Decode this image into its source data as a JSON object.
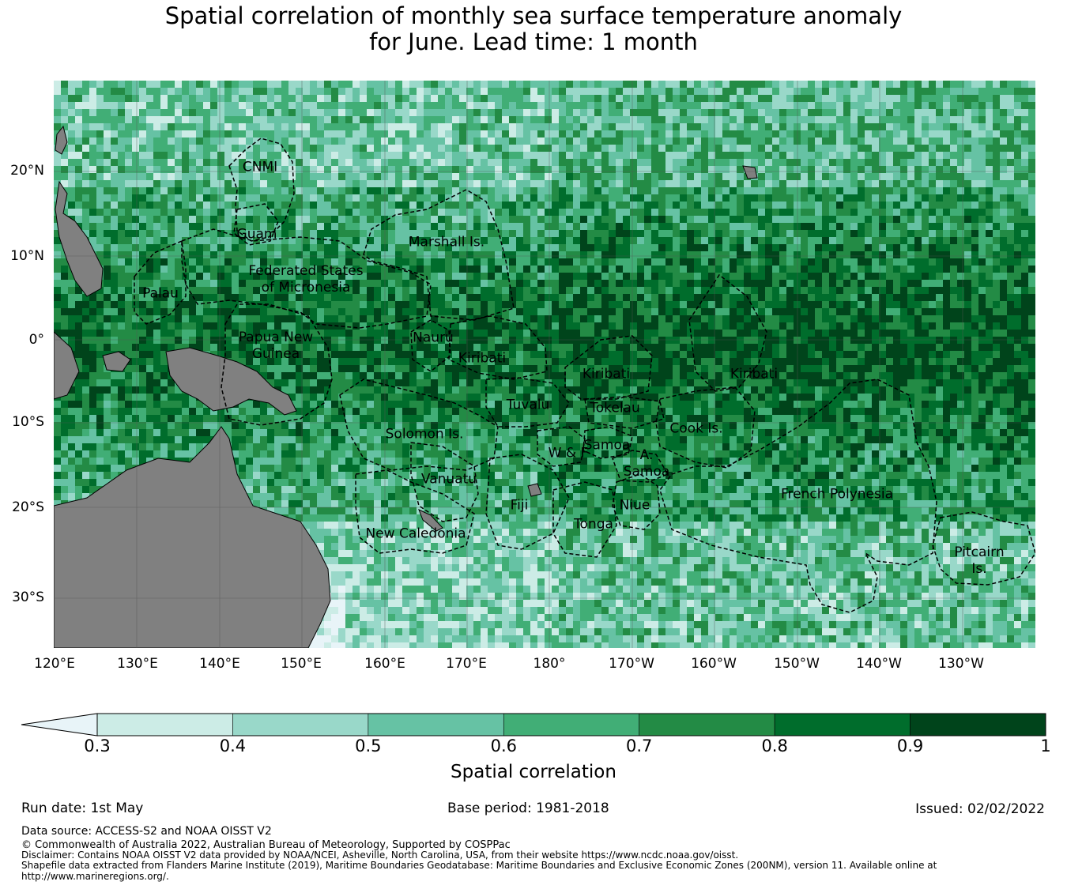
{
  "title": {
    "line1": "Spatial correlation of monthly sea surface temperature anomaly",
    "line2": "for June. Lead time: 1 month"
  },
  "map": {
    "lat_labels": [
      "20°N",
      "10°N",
      "0°",
      "10°S",
      "20°S",
      "30°S"
    ],
    "lon_labels": [
      "120°E",
      "130°E",
      "140°E",
      "150°E",
      "160°E",
      "170°E",
      "180°",
      "170°W",
      "160°W",
      "150°W",
      "140°W",
      "130°W"
    ],
    "regions": [
      {
        "name": "CNMI"
      },
      {
        "name": "Guam"
      },
      {
        "name": "Marshall Is."
      },
      {
        "name": "Federated States\nof Micronesia"
      },
      {
        "name": "Palau"
      },
      {
        "name": "Papua New\nGuinea"
      },
      {
        "name": "Nauru"
      },
      {
        "name": "Kiribati"
      },
      {
        "name": "Kiribati"
      },
      {
        "name": "Kiribati"
      },
      {
        "name": "Tuvalu"
      },
      {
        "name": "Tokelau"
      },
      {
        "name": "Cook Is."
      },
      {
        "name": "Solomon Is."
      },
      {
        "name": "Samoa"
      },
      {
        "name": "W & F"
      },
      {
        "name": "A.\nSamoa"
      },
      {
        "name": "Vanuatu"
      },
      {
        "name": "Fiji"
      },
      {
        "name": "Niue"
      },
      {
        "name": "Tonga"
      },
      {
        "name": "French Polynesia"
      },
      {
        "name": "New Caledonia"
      },
      {
        "name": "Pitcairn\nIs."
      }
    ],
    "land_color": "#808080"
  },
  "colorbar": {
    "label": "Spatial correlation",
    "ticks": [
      "0.3",
      "0.4",
      "0.5",
      "0.6",
      "0.7",
      "0.8",
      "0.9",
      "1"
    ],
    "under_color": "#e8f4f8",
    "colors": [
      "#ccece6",
      "#99d8c9",
      "#66c2a4",
      "#41ae76",
      "#238b45",
      "#006d2c",
      "#00441b"
    ]
  },
  "footer": {
    "run_date": "Run date: 1st May",
    "base_period": "Base period: 1981-2018",
    "issued": "Issued: 02/02/2022",
    "data_source": "Data source: ACCESS-S2 and NOAA OISST V2",
    "copyright": "© Commonwealth of Australia 2022, Australian Bureau of Meteorology, Supported by COSPPac",
    "disclaimer": "Disclaimer: Contains NOAA OISST V2 data provided by NOAA/NCEI, Asheville, North Carolina, USA, from their website https://www.ncdc.noaa.gov/oisst.",
    "shapefile": "Shapefile data extracted from Flanders Marine Institute (2019), Maritime Boundaries Geodatabase: Maritime Boundaries and Exclusive Economic Zones (200NM), version 11. Available online at",
    "shapefile_url": "http://www.marineregions.org/."
  }
}
